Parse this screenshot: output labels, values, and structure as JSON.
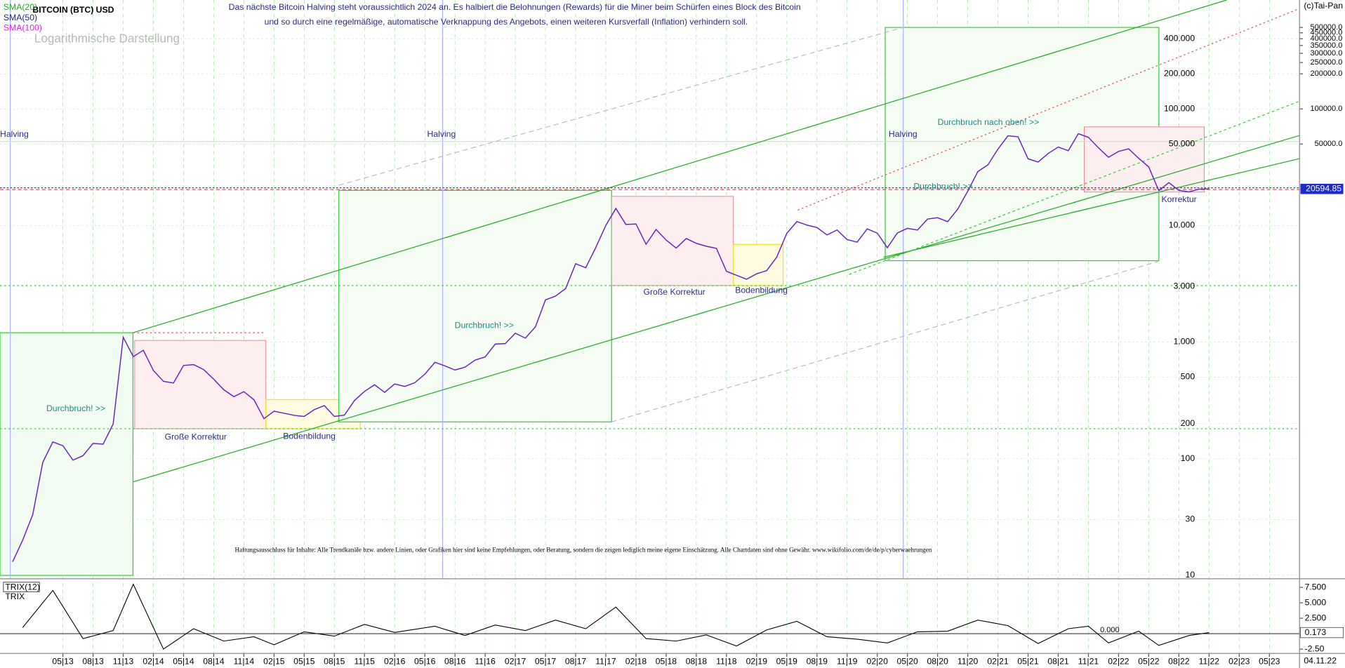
{
  "chart_data": {
    "type": "line",
    "title": "BITCOIN (BTC) USD",
    "subtitle": [
      "Das nächste Bitcoin Halving steht voraussichtlich 2024 an. Es halbiert die Belohnungen (Rewards) für die Miner beim Schürfen eines Block des Bitcoin",
      "und so durch eine regelmäßige, automatische Verknappung des Angebots, einen weiteren Kursverfall (Inflation) verhindern soll."
    ],
    "legend_labels": [
      "SMA(20)",
      "SMA(50)",
      "SMA(100)"
    ],
    "annotations": [
      "Logarithmische Darstellung",
      "(c)Tai-Pan",
      "Halving",
      "Halving",
      "Halving",
      "Durchbruch! >>",
      "Durchbruch! >>",
      "Durchbruch! >>",
      "Durchbruch nach oben! >>",
      "Große Korrektur",
      "Bodenbildung",
      "Große Korrektur",
      "Bodenbildung",
      "Korrektur",
      "Haftungsausschluss für Inhalte: Alle Trendkanäle bzw. andere Linien, oder Grafiken hier sind keine Empfehlungen, oder Beratung, sondern die zeigen lediglich meine eigene Einschätzung. Alle Chartdaten sind ohne Gewähr.  www.wikifolio.com/de/de/p/cyberwaehrungen",
      "04.11.22"
    ],
    "log_scale": true,
    "grid": true,
    "x": [
      "2012-12",
      "2013-01",
      "2013-02",
      "2013-03",
      "2013-04",
      "2013-05",
      "2013-06",
      "2013-07",
      "2013-08",
      "2013-09",
      "2013-10",
      "2013-11",
      "2013-12",
      "2014-01",
      "2014-02",
      "2014-03",
      "2014-04",
      "2014-05",
      "2014-06",
      "2014-07",
      "2014-08",
      "2014-09",
      "2014-10",
      "2014-11",
      "2014-12",
      "2015-01",
      "2015-02",
      "2015-03",
      "2015-04",
      "2015-05",
      "2015-06",
      "2015-07",
      "2015-08",
      "2015-09",
      "2015-10",
      "2015-11",
      "2015-12",
      "2016-01",
      "2016-02",
      "2016-03",
      "2016-04",
      "2016-05",
      "2016-06",
      "2016-07",
      "2016-08",
      "2016-09",
      "2016-10",
      "2016-11",
      "2016-12",
      "2017-01",
      "2017-02",
      "2017-03",
      "2017-04",
      "2017-05",
      "2017-06",
      "2017-07",
      "2017-08",
      "2017-09",
      "2017-10",
      "2017-11",
      "2017-12",
      "2018-01",
      "2018-02",
      "2018-03",
      "2018-04",
      "2018-05",
      "2018-06",
      "2018-07",
      "2018-08",
      "2018-09",
      "2018-10",
      "2018-11",
      "2018-12",
      "2019-01",
      "2019-02",
      "2019-03",
      "2019-04",
      "2019-05",
      "2019-06",
      "2019-07",
      "2019-08",
      "2019-09",
      "2019-10",
      "2019-11",
      "2019-12",
      "2020-01",
      "2020-02",
      "2020-03",
      "2020-04",
      "2020-05",
      "2020-06",
      "2020-07",
      "2020-08",
      "2020-09",
      "2020-10",
      "2020-11",
      "2020-12",
      "2021-01",
      "2021-02",
      "2021-03",
      "2021-04",
      "2021-05",
      "2021-06",
      "2021-07",
      "2021-08",
      "2021-09",
      "2021-10",
      "2021-11",
      "2021-12",
      "2022-01",
      "2022-02",
      "2022-03",
      "2022-04",
      "2022-05",
      "2022-06",
      "2022-07",
      "2022-08",
      "2022-09",
      "2022-10",
      "2022-11"
    ],
    "series": [
      {
        "name": "BITCOIN (BTC) USD",
        "color": "#6a1fc8",
        "values": [
          13,
          20,
          33,
          93,
          139,
          129,
          97,
          106,
          135,
          133,
          198,
          1100,
          750,
          850,
          570,
          460,
          445,
          630,
          640,
          580,
          480,
          390,
          340,
          375,
          320,
          220,
          255,
          245,
          235,
          230,
          263,
          285,
          230,
          236,
          315,
          377,
          430,
          370,
          437,
          416,
          448,
          530,
          670,
          624,
          575,
          609,
          700,
          745,
          960,
          970,
          1190,
          1080,
          1350,
          2300,
          2480,
          2875,
          4700,
          4340,
          6470,
          10000,
          14000,
          10200,
          10300,
          6900,
          9240,
          7500,
          6400,
          7730,
          7030,
          6630,
          6370,
          4040,
          3740,
          3460,
          3850,
          4100,
          5350,
          8570,
          10800,
          10080,
          9600,
          8300,
          9150,
          7570,
          7200,
          9350,
          8600,
          6440,
          8630,
          9450,
          9140,
          11350,
          11660,
          10780,
          13800,
          19700,
          29000,
          33100,
          45200,
          58800,
          57700,
          37300,
          35000,
          41500,
          47100,
          43800,
          61300,
          57000,
          46300,
          38500,
          43200,
          45500,
          37700,
          31800,
          19900,
          23300,
          20000,
          19400,
          20500,
          20594.85
        ]
      }
    ],
    "xlim": [
      "2012-11",
      "2023-08"
    ],
    "ylim": [
      9.3,
      860000
    ],
    "xticks": [
      {
        "value": "2013-05",
        "label": "05|13"
      },
      {
        "value": "2013-08",
        "label": "08|13"
      },
      {
        "value": "2013-11",
        "label": "11|13"
      },
      {
        "value": "2014-02",
        "label": "02|14"
      },
      {
        "value": "2014-05",
        "label": "05|14"
      },
      {
        "value": "2014-08",
        "label": "08|14"
      },
      {
        "value": "2014-11",
        "label": "11|14"
      },
      {
        "value": "2015-02",
        "label": "02|15"
      },
      {
        "value": "2015-05",
        "label": "05|15"
      },
      {
        "value": "2015-08",
        "label": "08|15"
      },
      {
        "value": "2015-11",
        "label": "11|15"
      },
      {
        "value": "2016-02",
        "label": "02|16"
      },
      {
        "value": "2016-05",
        "label": "05|16"
      },
      {
        "value": "2016-08",
        "label": "08|16"
      },
      {
        "value": "2016-11",
        "label": "11|16"
      },
      {
        "value": "2017-02",
        "label": "02|17"
      },
      {
        "value": "2017-05",
        "label": "05|17"
      },
      {
        "value": "2017-08",
        "label": "08|17"
      },
      {
        "value": "2017-11",
        "label": "11|17"
      },
      {
        "value": "2018-02",
        "label": "02|18"
      },
      {
        "value": "2018-05",
        "label": "05|18"
      },
      {
        "value": "2018-08",
        "label": "08|18"
      },
      {
        "value": "2018-11",
        "label": "11|18"
      },
      {
        "value": "2019-02",
        "label": "02|19"
      },
      {
        "value": "2019-05",
        "label": "05|19"
      },
      {
        "value": "2019-08",
        "label": "08|19"
      },
      {
        "value": "2019-11",
        "label": "11|19"
      },
      {
        "value": "2020-02",
        "label": "02|20"
      },
      {
        "value": "2020-05",
        "label": "05|20"
      },
      {
        "value": "2020-08",
        "label": "08|20"
      },
      {
        "value": "2020-11",
        "label": "11|20"
      },
      {
        "value": "2021-02",
        "label": "02|21"
      },
      {
        "value": "2021-05",
        "label": "05|21"
      },
      {
        "value": "2021-08",
        "label": "08|21"
      },
      {
        "value": "2021-11",
        "label": "11|21"
      },
      {
        "value": "2022-02",
        "label": "02|22"
      },
      {
        "value": "2022-05",
        "label": "05|22"
      },
      {
        "value": "2022-08",
        "label": "08|22"
      },
      {
        "value": "2022-11",
        "label": "11|22"
      },
      {
        "value": "2023-02",
        "label": "02|23"
      },
      {
        "value": "2023-05",
        "label": "05|23"
      }
    ],
    "yticks": [
      10,
      30,
      100,
      200,
      500,
      {
        "value": 1000,
        "label": "1.000"
      },
      {
        "value": 3000,
        "label": "3.000"
      },
      {
        "value": 10000,
        "label": "10.000"
      },
      {
        "value": 50000,
        "label": "50.000"
      },
      {
        "value": 100000,
        "label": "100.000"
      },
      {
        "value": 200000,
        "label": "200.000"
      },
      {
        "value": 400000,
        "label": "400.000"
      }
    ],
    "y_right_ticks": [
      {
        "value": 50000,
        "label": "50000.0"
      },
      {
        "value": 100000,
        "label": "100000.0"
      },
      {
        "value": 200000,
        "label": "200000.0"
      },
      {
        "value": 250000,
        "label": "250000.0"
      },
      {
        "value": 300000,
        "label": "300000.0"
      },
      {
        "value": 350000,
        "label": "350000.0"
      },
      {
        "value": 400000,
        "label": "400000.0"
      },
      {
        "value": 450000,
        "label": "450000.0"
      },
      {
        "value": 500000,
        "label": "500000.0"
      }
    ],
    "trix": {
      "name": "TRIX(12)",
      "label": "TRIX",
      "color": "#000000",
      "x": [
        "2013-01",
        "2013-04",
        "2013-07",
        "2013-10",
        "2013-12",
        "2014-03",
        "2014-06",
        "2014-09",
        "2014-12",
        "2015-02",
        "2015-05",
        "2015-08",
        "2015-11",
        "2016-02",
        "2016-06",
        "2016-09",
        "2016-12",
        "2017-03",
        "2017-06",
        "2017-09",
        "2017-12",
        "2018-03",
        "2018-06",
        "2018-09",
        "2018-12",
        "2019-03",
        "2019-06",
        "2019-09",
        "2019-12",
        "2020-03",
        "2020-06",
        "2020-09",
        "2020-12",
        "2021-03",
        "2021-06",
        "2021-09",
        "2021-11",
        "2022-01",
        "2022-04",
        "2022-06",
        "2022-09",
        "2022-11"
      ],
      "values": [
        1,
        7,
        -0.8,
        0.5,
        8,
        -2.5,
        0.8,
        -1.2,
        -0.5,
        -1.8,
        0.3,
        -0.4,
        1.5,
        0.2,
        1.2,
        -0.3,
        1.4,
        0.5,
        2.2,
        0.8,
        4.3,
        -0.8,
        -1.2,
        -0.2,
        -2,
        0.6,
        2,
        -0.5,
        -0.9,
        -1.5,
        0.3,
        0.4,
        2.2,
        1.3,
        -1.6,
        0.8,
        1.2,
        -1.5,
        0.4,
        -1.9,
        -0.3,
        0.173
      ],
      "ylim": [
        -3.2,
        8.6
      ],
      "yticks": [
        {
          "value": 7.5,
          "label": "7.500"
        },
        {
          "value": 5,
          "label": "5.000"
        },
        {
          "value": 2.5,
          "label": "2.500"
        },
        {
          "value": 0,
          "label": "0.000"
        },
        {
          "value": -2.5,
          "label": "-2.50"
        }
      ]
    }
  }
}
